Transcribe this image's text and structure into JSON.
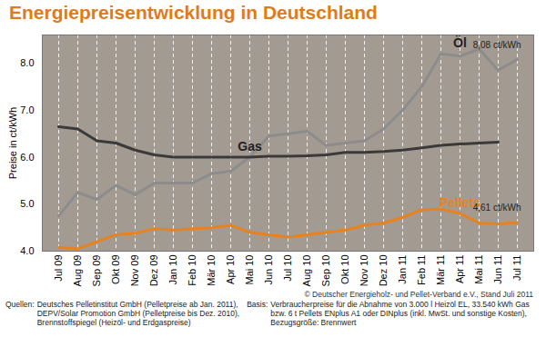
{
  "chart_data": {
    "type": "line",
    "title": "Energiepreisentwicklung in Deutschland",
    "y_label": "Preise in ct/kWh",
    "x": [
      "Jul 09",
      "Aug 09",
      "Sep 09",
      "Okt 09",
      "Nov 09",
      "Dez 09",
      "Jan 10",
      "Feb 10",
      "Mär 10",
      "Apr 10",
      "Mai 10",
      "Jun 10",
      "Jul 10",
      "Aug 10",
      "Sep 10",
      "Okt 10",
      "Nov 10",
      "Dez 10",
      "Jan 11",
      "Feb 11",
      "Mär 11",
      "Apr 11",
      "Mai 11",
      "Jun 11",
      "Jul 11"
    ],
    "series": [
      {
        "name": "Öl",
        "color": "#8c8c8c",
        "values": [
          4.75,
          5.25,
          5.1,
          5.4,
          5.2,
          5.45,
          5.45,
          5.45,
          5.65,
          5.7,
          6.0,
          6.45,
          6.5,
          6.55,
          6.25,
          6.3,
          6.35,
          6.6,
          7.0,
          7.5,
          8.2,
          8.15,
          8.3,
          7.85,
          8.08
        ]
      },
      {
        "name": "Gas",
        "color": "#3a3a3a",
        "values": [
          6.65,
          6.6,
          6.35,
          6.3,
          6.15,
          6.05,
          6.0,
          6.0,
          6.0,
          6.0,
          6.0,
          6.02,
          6.02,
          6.03,
          6.05,
          6.1,
          6.1,
          6.12,
          6.15,
          6.2,
          6.25,
          6.28,
          6.3,
          6.32,
          null
        ]
      },
      {
        "name": "Pellets",
        "color": "#e8821e",
        "values": [
          4.08,
          4.05,
          4.2,
          4.35,
          4.38,
          4.48,
          4.45,
          4.48,
          4.5,
          4.55,
          4.4,
          4.35,
          4.3,
          4.35,
          4.4,
          4.45,
          4.55,
          4.6,
          4.72,
          4.88,
          4.9,
          4.8,
          4.6,
          4.58,
          4.61
        ]
      }
    ],
    "ylim": [
      4,
      8.6
    ],
    "yticks": [
      4,
      5,
      6,
      7,
      8
    ],
    "grid": true,
    "annotations": [
      {
        "text": "8,08 ct/kWh",
        "series": "Öl",
        "x": "Jul 11"
      },
      {
        "text": "4,61 ct/kWh",
        "series": "Pellets",
        "x": "Jul 11"
      }
    ],
    "copyright": "© Deutscher Energieholz- und Pellet-Verband e.V., Stand Juli 2011",
    "sources": {
      "label": "Quellen:",
      "lines": [
        "Deutsches Pelletinstitut GmbH (Pelletpreise ab Jan. 2011),",
        "DEPV/Solar Promotion GmbH (Pelletpreise bis Dez. 2010),",
        "Brennstoffspiegel (Heizöl- und Erdgaspreise)"
      ]
    },
    "basis": {
      "label": "Basis:",
      "lines": [
        "Verbraucherpreise für die Abnahme von 3.000 l Heizöl EL, 33.540 kWh Gas",
        "bzw. 6 t Pellets ENplus A1 oder DINplus (inkl. MwSt. und sonstige Kosten),",
        "Bezugsgröße: Brennwert"
      ]
    }
  }
}
